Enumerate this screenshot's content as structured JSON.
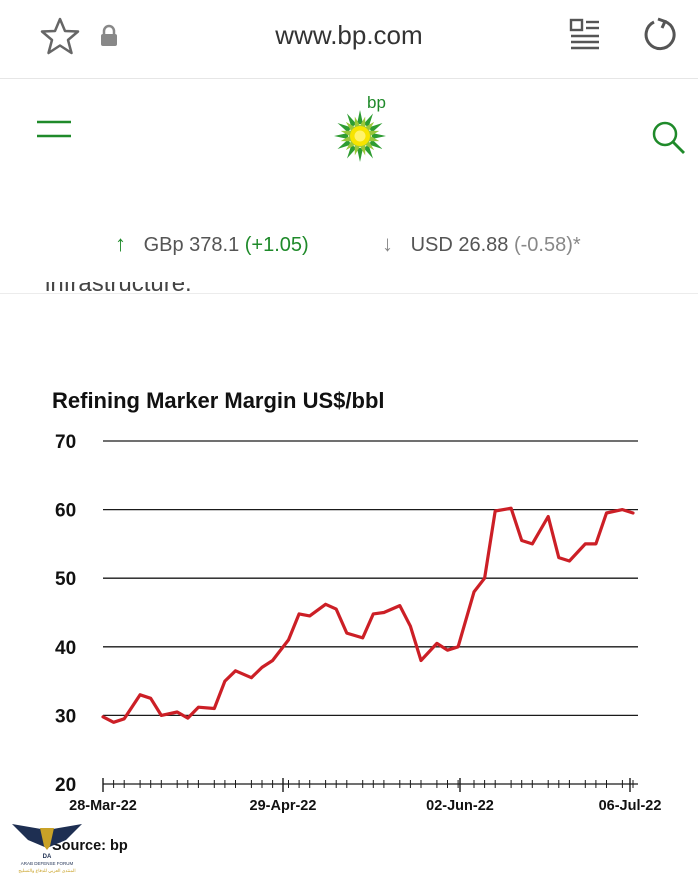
{
  "browser": {
    "url": "www.bp.com",
    "icons": [
      "star-icon",
      "lock-icon",
      "reader-mode-icon",
      "reload-icon"
    ]
  },
  "site": {
    "logo_text": "bp",
    "icons": [
      "menu-icon",
      "search-icon"
    ],
    "ticker": {
      "gbp_label": "GBp 378.1",
      "gbp_change": "(+1.05)",
      "usd_label": "USD 26.88",
      "usd_change": "(-0.58)*"
    }
  },
  "article": {
    "cut_off_text": "infrastructure."
  },
  "chart_data": {
    "type": "line",
    "title": "Refining Marker Margin US$/bbl",
    "source": "Source: bp",
    "ylim": [
      20,
      70
    ],
    "yticks": [
      20,
      30,
      40,
      50,
      60,
      70
    ],
    "xtick_labels": [
      "28-Mar-22",
      "29-Apr-22",
      "02-Jun-22",
      "06-Jul-22"
    ],
    "grid": true,
    "line_color": "#cc1f26",
    "series": [
      {
        "x": [
          "2022-03-28",
          "2022-03-30",
          "2022-04-01",
          "2022-04-04",
          "2022-04-06",
          "2022-04-08",
          "2022-04-11",
          "2022-04-13",
          "2022-04-15",
          "2022-04-18",
          "2022-04-20",
          "2022-04-22",
          "2022-04-25",
          "2022-04-27",
          "2022-04-29",
          "2022-05-02",
          "2022-05-04",
          "2022-05-06",
          "2022-05-09",
          "2022-05-11",
          "2022-05-13",
          "2022-05-16",
          "2022-05-18",
          "2022-05-20",
          "2022-05-23",
          "2022-05-25",
          "2022-05-27",
          "2022-05-30",
          "2022-06-01",
          "2022-06-03",
          "2022-06-06",
          "2022-06-08",
          "2022-06-10",
          "2022-06-13",
          "2022-06-15",
          "2022-06-17",
          "2022-06-20",
          "2022-06-22",
          "2022-06-24",
          "2022-06-27",
          "2022-06-29",
          "2022-07-01",
          "2022-07-04",
          "2022-07-06"
        ],
        "values": [
          29.8,
          29.0,
          29.5,
          33.0,
          32.5,
          30.0,
          30.5,
          29.6,
          31.2,
          31.0,
          35.0,
          36.5,
          35.5,
          37.0,
          38.0,
          41.0,
          44.8,
          44.5,
          46.2,
          45.5,
          42.0,
          41.3,
          44.8,
          45.0,
          46.0,
          43.0,
          38.0,
          40.5,
          39.5,
          40.0,
          48.0,
          50.0,
          59.8,
          60.2,
          55.5,
          55.0,
          59.0,
          53.0,
          52.5,
          55.0,
          55.0,
          59.5,
          60.0,
          59.5
        ]
      }
    ]
  }
}
